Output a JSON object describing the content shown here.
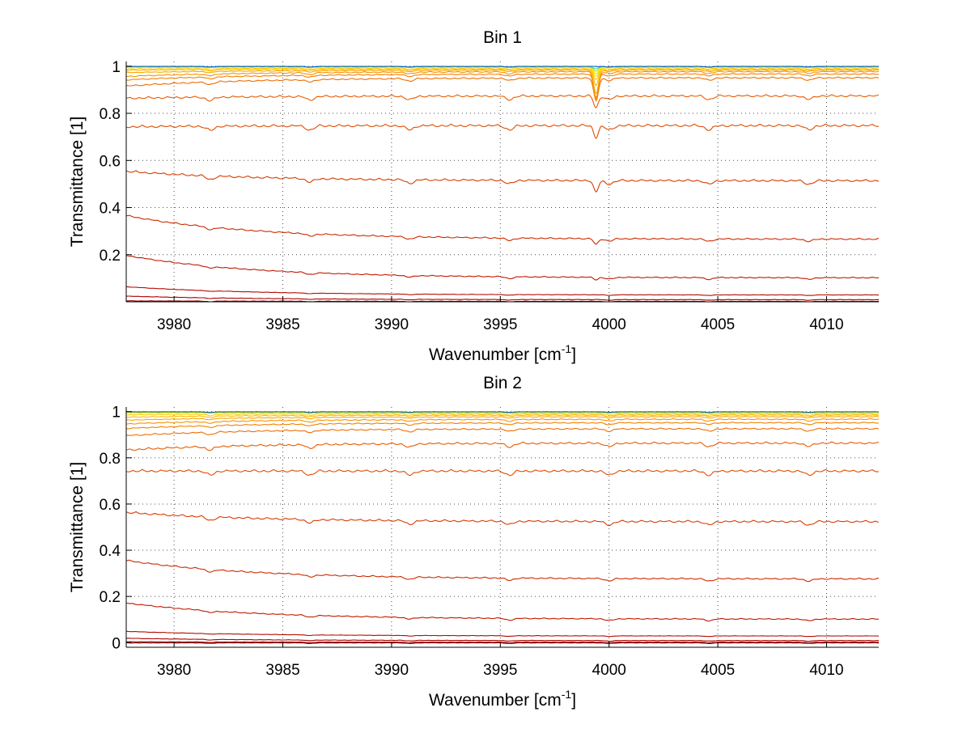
{
  "chart_data": [
    {
      "type": "line",
      "title": "Bin 1",
      "xlabel": "Wavenumber [cm",
      "xlabel_sup": "-1",
      "xlabel_tail": "]",
      "ylabel": "Transmittance [1]",
      "xlim": [
        3977.8,
        4012.4
      ],
      "ylim": [
        0,
        1.02
      ],
      "xticks": [
        3980,
        3985,
        3990,
        3995,
        4000,
        4005,
        4010
      ],
      "xtick_labels": [
        "3980",
        "3985",
        "3990",
        "3995",
        "4000",
        "4005",
        "4010"
      ],
      "yticks": [
        0.2,
        0.4,
        0.6,
        0.8,
        1
      ],
      "ytick_labels": [
        "0.2",
        "0.4",
        "0.6",
        "0.8",
        "1"
      ],
      "grid": true,
      "dip": {
        "x": 3999.4,
        "width": 0.15
      },
      "series": [
        {
          "start": 0.0,
          "end": 0.0,
          "dip": 0.0,
          "ripple": 0.001,
          "color": "#800000"
        },
        {
          "start": 0.005,
          "end": 0.003,
          "dip": 0.0,
          "ripple": 0.001,
          "color": "#990000"
        },
        {
          "start": 0.025,
          "end": 0.01,
          "dip": 0.0,
          "ripple": 0.001,
          "color": "#aa0000"
        },
        {
          "start": 0.065,
          "end": 0.03,
          "dip": 0.0,
          "ripple": 0.001,
          "color": "#b30c00"
        },
        {
          "start": 0.2,
          "end": 0.105,
          "dip": 0.01,
          "ripple": 0.003,
          "color": "#c01800"
        },
        {
          "start": 0.37,
          "end": 0.27,
          "dip": 0.025,
          "ripple": 0.004,
          "color": "#cc2a00"
        },
        {
          "start": 0.56,
          "end": 0.52,
          "dip": 0.05,
          "ripple": 0.006,
          "color": "#d83c00"
        },
        {
          "start": 0.75,
          "end": 0.755,
          "dip": 0.05,
          "ripple": 0.007,
          "color": "#e04c00"
        },
        {
          "start": 0.87,
          "end": 0.88,
          "dip": 0.05,
          "ripple": 0.006,
          "color": "#e85a00"
        },
        {
          "start": 0.92,
          "end": 0.955,
          "dip": 0.1,
          "ripple": 0.004,
          "color": "#ef6c00"
        },
        {
          "start": 0.945,
          "end": 0.97,
          "dip": 0.1,
          "ripple": 0.003,
          "color": "#f47f00"
        },
        {
          "start": 0.96,
          "end": 0.98,
          "dip": 0.12,
          "ripple": 0.003,
          "color": "#f79200"
        },
        {
          "start": 0.975,
          "end": 0.985,
          "dip": 0.1,
          "ripple": 0.002,
          "color": "#faa600"
        },
        {
          "start": 0.985,
          "end": 0.99,
          "dip": 0.07,
          "ripple": 0.002,
          "color": "#fcba00"
        },
        {
          "start": 0.99,
          "end": 0.995,
          "dip": 0.05,
          "ripple": 0.002,
          "color": "#fdd000"
        },
        {
          "start": 0.995,
          "end": 0.998,
          "dip": 0.04,
          "ripple": 0.001,
          "color": "#ffe400"
        },
        {
          "start": 0.998,
          "end": 0.999,
          "dip": 0.03,
          "ripple": 0.001,
          "color": "#e6f000"
        },
        {
          "start": 1.0,
          "end": 1.0,
          "dip": 0.02,
          "ripple": 0.001,
          "color": "#a0e040"
        },
        {
          "start": 1.0,
          "end": 1.0,
          "dip": 0.01,
          "ripple": 0.001,
          "color": "#40d0c0"
        },
        {
          "start": 1.0,
          "end": 1.0,
          "dip": 0.0,
          "ripple": 0.001,
          "color": "#1060c0"
        }
      ]
    },
    {
      "type": "line",
      "title": "Bin 2",
      "xlabel": "Wavenumber [cm",
      "xlabel_sup": "-1",
      "xlabel_tail": "]",
      "ylabel": "Transmittance [1]",
      "xlim": [
        3977.8,
        4012.4
      ],
      "ylim": [
        -0.02,
        1.02
      ],
      "xticks": [
        3980,
        3985,
        3990,
        3995,
        4000,
        4005,
        4010
      ],
      "xtick_labels": [
        "3980",
        "3985",
        "3990",
        "3995",
        "4000",
        "4005",
        "4010"
      ],
      "yticks": [
        0,
        0.2,
        0.4,
        0.6,
        0.8,
        1
      ],
      "ytick_labels": [
        "0",
        "0.2",
        "0.4",
        "0.6",
        "0.8",
        "1"
      ],
      "grid": true,
      "dip": {
        "x": 3999.4,
        "width": 0.15
      },
      "series": [
        {
          "start": 0.0,
          "end": 0.0,
          "dip": 0.0,
          "ripple": 0.001,
          "color": "#800000"
        },
        {
          "start": 0.005,
          "end": 0.003,
          "dip": 0.0,
          "ripple": 0.001,
          "color": "#990000"
        },
        {
          "start": 0.02,
          "end": 0.01,
          "dip": 0.0,
          "ripple": 0.001,
          "color": "#aa0000"
        },
        {
          "start": 0.05,
          "end": 0.03,
          "dip": 0.0,
          "ripple": 0.001,
          "color": "#b30c00"
        },
        {
          "start": 0.175,
          "end": 0.105,
          "dip": 0.0,
          "ripple": 0.003,
          "color": "#c01800"
        },
        {
          "start": 0.36,
          "end": 0.28,
          "dip": 0.0,
          "ripple": 0.004,
          "color": "#cc2a00"
        },
        {
          "start": 0.57,
          "end": 0.53,
          "dip": 0.0,
          "ripple": 0.006,
          "color": "#d83c00"
        },
        {
          "start": 0.75,
          "end": 0.75,
          "dip": 0.0,
          "ripple": 0.007,
          "color": "#e04c00"
        },
        {
          "start": 0.84,
          "end": 0.87,
          "dip": 0.0,
          "ripple": 0.006,
          "color": "#e85a00"
        },
        {
          "start": 0.9,
          "end": 0.93,
          "dip": 0.0,
          "ripple": 0.004,
          "color": "#ef6c00"
        },
        {
          "start": 0.93,
          "end": 0.955,
          "dip": 0.0,
          "ripple": 0.003,
          "color": "#f47f00"
        },
        {
          "start": 0.95,
          "end": 0.97,
          "dip": 0.0,
          "ripple": 0.003,
          "color": "#f79200"
        },
        {
          "start": 0.965,
          "end": 0.98,
          "dip": 0.0,
          "ripple": 0.002,
          "color": "#faa600"
        },
        {
          "start": 0.978,
          "end": 0.987,
          "dip": 0.0,
          "ripple": 0.002,
          "color": "#fcba00"
        },
        {
          "start": 0.988,
          "end": 0.992,
          "dip": 0.0,
          "ripple": 0.002,
          "color": "#fdd000"
        },
        {
          "start": 0.994,
          "end": 0.996,
          "dip": 0.0,
          "ripple": 0.001,
          "color": "#ffe400"
        },
        {
          "start": 0.998,
          "end": 0.998,
          "dip": 0.0,
          "ripple": 0.001,
          "color": "#e6f000"
        },
        {
          "start": 1.0,
          "end": 1.0,
          "dip": 0.0,
          "ripple": 0.001,
          "color": "#a0e040"
        },
        {
          "start": 1.0,
          "end": 1.0,
          "dip": 0.0,
          "ripple": 0.001,
          "color": "#40d0c0"
        },
        {
          "start": 1.0,
          "end": 1.0,
          "dip": 0.0,
          "ripple": 0.001,
          "color": "#1060c0"
        }
      ]
    }
  ]
}
